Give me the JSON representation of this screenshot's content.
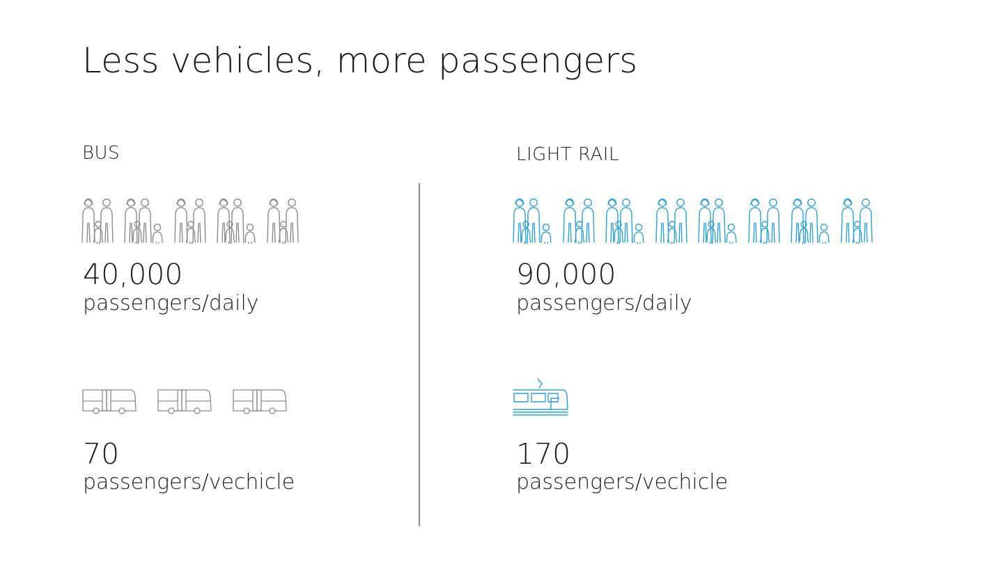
{
  "title": "Less vehicles, more passengers",
  "colors": {
    "bus_icons": "#8a8a8a",
    "rail_icons": "#2aa0d8",
    "divider": "#8c8c8c",
    "text": "#1a1a1a"
  },
  "bus": {
    "label": "BUS",
    "people_icons": [
      "family-of-three-icon",
      "family-of-four-icon",
      "family-of-three-icon",
      "family-of-four-icon",
      "family-of-three-icon"
    ],
    "daily_value": "40,000",
    "daily_unit": "passengers/daily",
    "vehicle_icons": [
      "bus-icon",
      "bus-icon",
      "bus-icon"
    ],
    "per_vehicle_value": "70",
    "per_vehicle_unit": "passengers/vechicle"
  },
  "light_rail": {
    "label": "LIGHT RAIL",
    "people_icons": [
      "family-of-four-icon",
      "family-of-three-icon",
      "family-of-four-icon",
      "family-of-three-icon",
      "family-of-four-icon",
      "family-of-three-icon",
      "family-of-four-icon",
      "family-of-three-icon"
    ],
    "daily_value": "90,000",
    "daily_unit": "passengers/daily",
    "vehicle_icons": [
      "tram-icon"
    ],
    "per_vehicle_value": "170",
    "per_vehicle_unit": "passengers/vechicle"
  }
}
